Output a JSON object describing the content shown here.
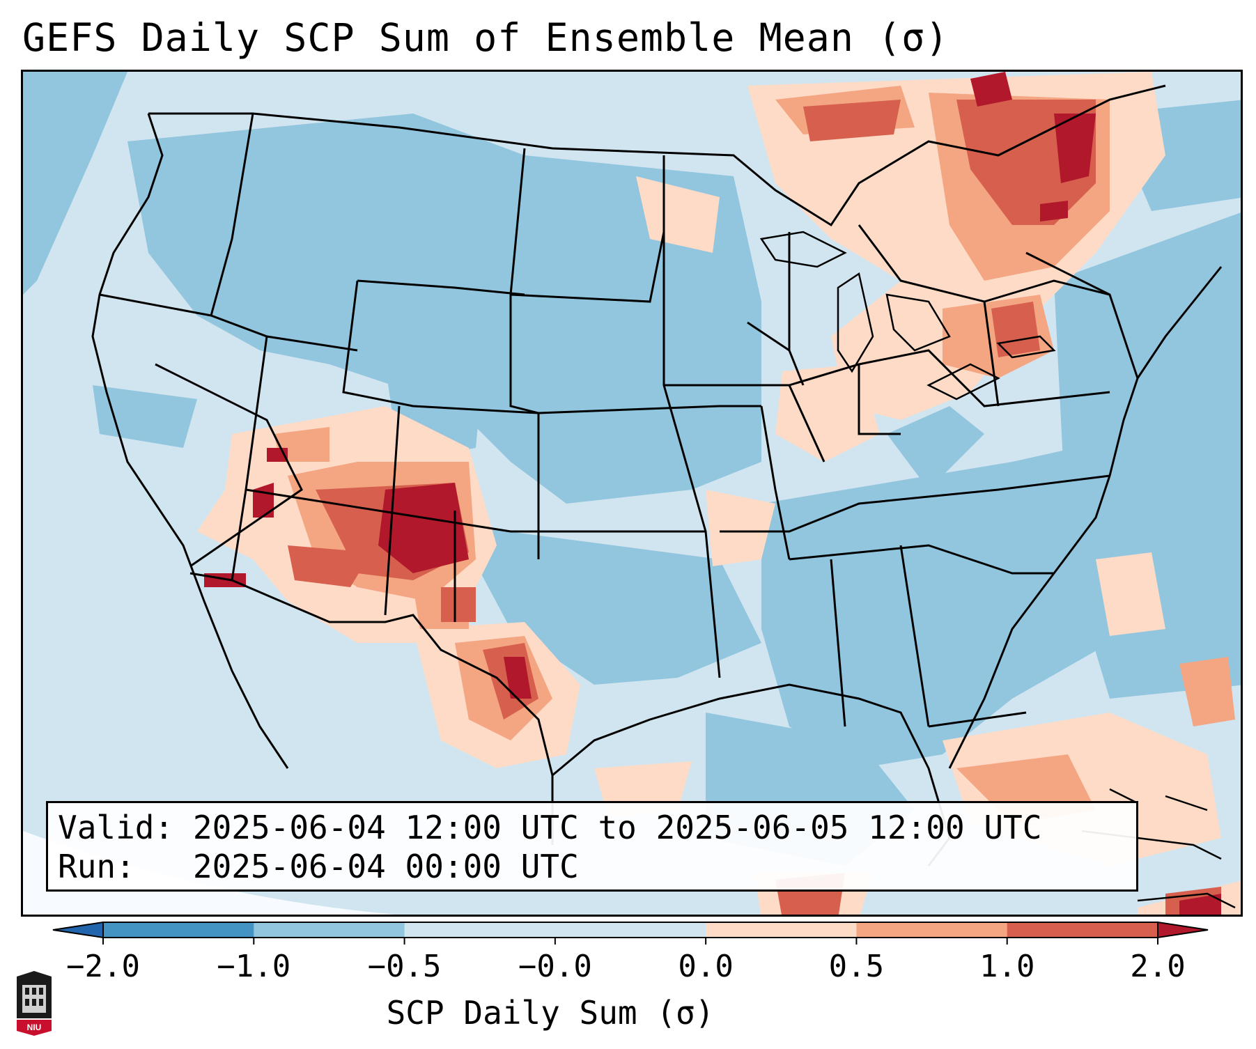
{
  "title": "GEFS Daily SCP Sum of Ensemble Mean (σ)",
  "info_box": {
    "valid_label": "Valid:",
    "valid_value": "2025-06-04 12:00 UTC to 2025-06-05 12:00 UTC",
    "run_label": "Run:",
    "run_value": "2025-06-04 00:00 UTC"
  },
  "colorbar": {
    "label": "SCP Daily Sum (σ)",
    "ticks": [
      "−2.0",
      "−1.0",
      "−0.5",
      "−0.0",
      "0.0",
      "0.5",
      "1.0",
      "2.0"
    ],
    "colors": [
      "#2166ac",
      "#4393c3",
      "#92c5de",
      "#d1e5f0",
      "#fddbc7",
      "#f4a582",
      "#d6604d",
      "#b2182b"
    ],
    "extend": "both"
  },
  "map_region": "Continental United States",
  "logo_text": "NIU",
  "icons": [
    "niu-logo-icon"
  ]
}
